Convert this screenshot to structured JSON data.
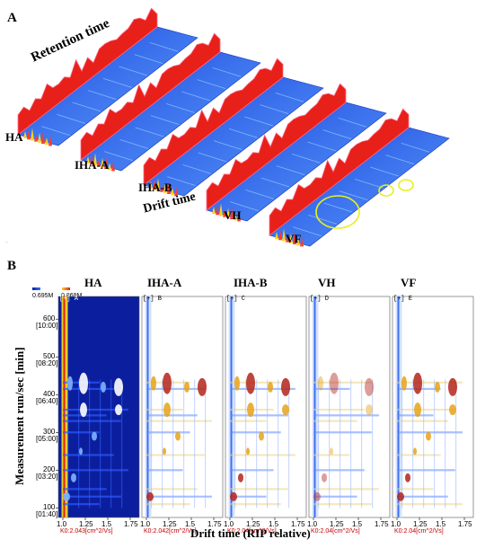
{
  "panel_a": {
    "letter": "A",
    "axis_retention": "Retention time",
    "axis_drift": "Drift time",
    "samples": [
      "HA",
      "IHA-A",
      "IHA-B",
      "VH",
      "VF"
    ]
  },
  "panel_b": {
    "letter": "B",
    "samples": [
      "HA",
      "IHA-A",
      "IHA-B",
      "VH",
      "VF"
    ],
    "scale_min": "0.695M",
    "scale_max": "0.869M",
    "ylabel": "Measurement run/sec [min]",
    "xlabel": "Drift time (RIP relative)",
    "y_ticks": [
      {
        "sec": "100",
        "min": "[01:40]"
      },
      {
        "sec": "200",
        "min": "[03:20]"
      },
      {
        "sec": "300",
        "min": "[05:00]"
      },
      {
        "sec": "400",
        "min": "[06:40]"
      },
      {
        "sec": "500",
        "min": "[08:20]"
      },
      {
        "sec": "600",
        "min": "[10:00]"
      }
    ],
    "x_ticks": [
      "1.0",
      "1.25",
      "1.5",
      "1.75"
    ],
    "panels": [
      {
        "tag": "[+]",
        "letter": "A",
        "k0": "K0:2.043[cm^2/Vs]",
        "bg": "#0b1f9e"
      },
      {
        "tag": "[+]",
        "letter": "B",
        "k0": "K0:2.042[cm^2/Vs]",
        "bg": "#ffffff"
      },
      {
        "tag": "[+]",
        "letter": "C",
        "k0": "K0:2.04[cm^2/Vs]",
        "bg": "#ffffff"
      },
      {
        "tag": "[+]",
        "letter": "D",
        "k0": "K0:2.04[cm^2/Vs]",
        "bg": "#ffffff"
      },
      {
        "tag": "[+]",
        "letter": "E",
        "k0": "K0:2.04[cm^2/Vs]",
        "bg": "#ffffff"
      }
    ]
  },
  "chart_data": [
    {
      "type": "heatmap",
      "title": "",
      "panel": "A",
      "xlabel": "Drift time",
      "ylabel": "Retention time",
      "series": [
        {
          "name": "HA"
        },
        {
          "name": "IHA-A"
        },
        {
          "name": "IHA-B"
        },
        {
          "name": "VH"
        },
        {
          "name": "VF"
        }
      ]
    },
    {
      "type": "heatmap",
      "panel": "B",
      "xlabel": "Drift time (RIP relative)",
      "ylabel": "Measurement run/sec [min]",
      "xlim": [
        0.95,
        1.85
      ],
      "ylim": [
        75,
        660
      ],
      "colorscale_range": [
        "0.695M",
        "0.869M"
      ],
      "series": [
        {
          "name": "HA",
          "reference": true
        },
        {
          "name": "IHA-A",
          "reference": false
        },
        {
          "name": "IHA-B",
          "reference": false
        },
        {
          "name": "VH",
          "reference": false
        },
        {
          "name": "VF",
          "reference": false
        }
      ]
    }
  ],
  "colors": {
    "bg_blue": "#2f5fe0",
    "ref_blue": "#0b1f9e",
    "peak_red": "#e8201a",
    "highlight": "#e6f01e"
  }
}
